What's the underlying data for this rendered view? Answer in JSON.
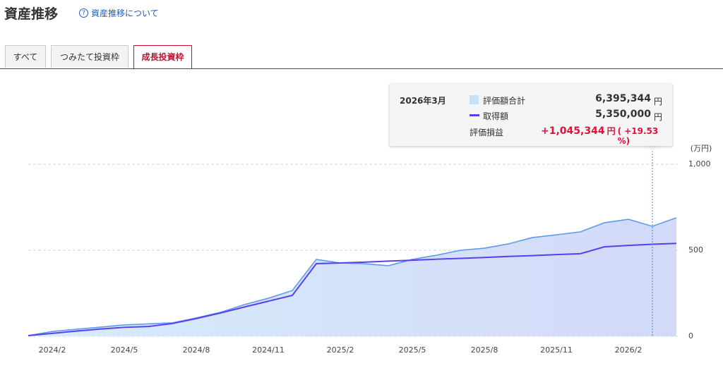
{
  "header": {
    "title": "資産推移",
    "help_link": "資産推移について"
  },
  "tabs": [
    "すべて",
    "つみたて投資枠",
    "成長投資枠"
  ],
  "tooltip": {
    "date": "2026年3月",
    "rows": [
      {
        "value": "6,395,344",
        "unit": "円"
      },
      {
        "value": "5,350,000",
        "unit": "円"
      }
    ],
    "gain": {
      "label": "評価損益",
      "value": "+1,045,344",
      "unit": "円",
      "percent": "( +19.53 %)"
    }
  },
  "chart_data": {
    "type": "area",
    "y_unit": "(万円)",
    "categories": [
      null,
      "2024/2",
      null,
      null,
      "2024/5",
      null,
      null,
      "2024/8",
      null,
      null,
      "2024/11",
      null,
      null,
      "2025/2",
      null,
      null,
      "2025/5",
      null,
      null,
      "2025/8",
      null,
      null,
      "2025/11",
      null,
      null,
      "2026/2",
      null,
      null
    ],
    "series": [
      {
        "name": "評価額合計",
        "color": "#5b9bef",
        "fill": true,
        "values": [
          4,
          28,
          41,
          53,
          66,
          72,
          78,
          107,
          139,
          184,
          221,
          266,
          447,
          426,
          422,
          410,
          447,
          471,
          500,
          512,
          537,
          574,
          590,
          607,
          660,
          680,
          639.5,
          689
        ]
      },
      {
        "name": "取得額",
        "color": "#5a3ff0",
        "fill": false,
        "values": [
          4,
          17,
          30,
          42,
          52,
          57,
          74,
          103,
          135,
          170,
          204,
          238,
          422,
          426,
          431,
          437,
          442,
          448,
          453,
          458,
          464,
          469,
          475,
          480,
          520,
          528,
          535,
          540
        ]
      }
    ],
    "ylim": [
      0,
      1000
    ],
    "yticks": [
      0,
      500,
      {
        "value": 1000,
        "label": "1,000"
      }
    ],
    "grid": true
  }
}
